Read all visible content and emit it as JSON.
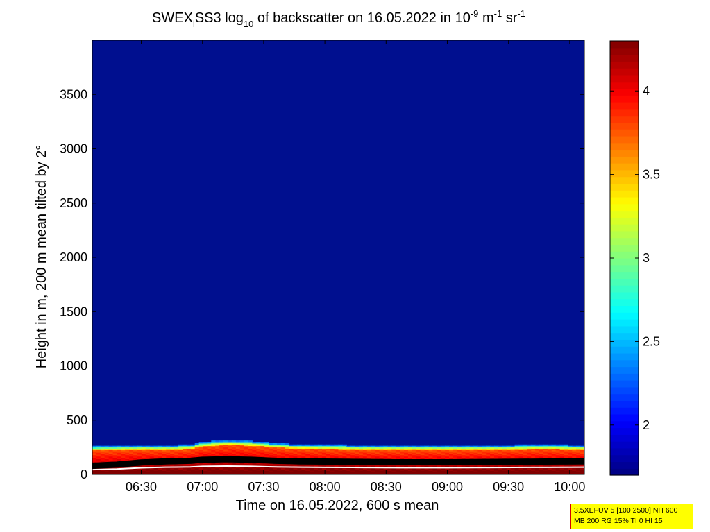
{
  "chart_data": {
    "type": "heatmap",
    "title": {
      "prefix": "SWEX",
      "sub1": "l",
      "mid": "SS3 log",
      "sub2": "10",
      "main": " of backscatter on 16.05.2022 in 10",
      "sup1": "-9",
      "unit1": " m",
      "sup2": "-1",
      "unit2": " sr",
      "sup3": "-1"
    },
    "xlabel": "Time on 16.05.2022, 600 s mean",
    "ylabel": "Height in m, 200 m mean tilted by 2°",
    "x_ticks": [
      "06:30",
      "07:00",
      "07:30",
      "08:00",
      "08:30",
      "09:00",
      "09:30",
      "10:00"
    ],
    "x_tick_hours": [
      6.5,
      7.0,
      7.5,
      8.0,
      8.5,
      9.0,
      9.5,
      10.0
    ],
    "xlim_hours": [
      6.1,
      10.12
    ],
    "y_ticks": [
      "0",
      "500",
      "1000",
      "1500",
      "2000",
      "2500",
      "3000",
      "3500"
    ],
    "y_tick_values": [
      0,
      500,
      1000,
      1500,
      2000,
      2500,
      3000,
      3500
    ],
    "ylim": [
      0,
      4000
    ],
    "colorbar": {
      "range": [
        1.7,
        4.3
      ],
      "ticks": [
        "2",
        "2.5",
        "3",
        "3.5",
        "4"
      ],
      "tick_values": [
        2,
        2.5,
        3,
        3.5,
        4
      ],
      "colormap": "jet"
    },
    "background_value": 1.75,
    "layer_top_profile": {
      "hours": [
        6.1,
        6.3,
        6.5,
        6.7,
        6.9,
        7.0,
        7.2,
        7.4,
        7.6,
        7.8,
        8.0,
        8.3,
        8.6,
        9.0,
        9.4,
        9.8,
        10.12
      ],
      "height_m": [
        240,
        245,
        250,
        248,
        255,
        280,
        300,
        290,
        270,
        260,
        255,
        250,
        250,
        248,
        250,
        255,
        250
      ]
    },
    "boundary_layer_line": {
      "hours": [
        6.1,
        6.3,
        6.5,
        6.7,
        6.9,
        7.0,
        7.2,
        7.4,
        7.6,
        7.8,
        8.0,
        8.3,
        8.6,
        9.0,
        9.4,
        9.8,
        10.12
      ],
      "height_m": [
        80,
        90,
        110,
        120,
        125,
        135,
        140,
        135,
        125,
        120,
        118,
        115,
        112,
        112,
        115,
        118,
        120
      ]
    }
  },
  "info_box": {
    "line1": "3.5XEFUV 5 [100 2500] NH 600",
    "line2": "MB 200 RG 15% TI 0 HI 15"
  }
}
